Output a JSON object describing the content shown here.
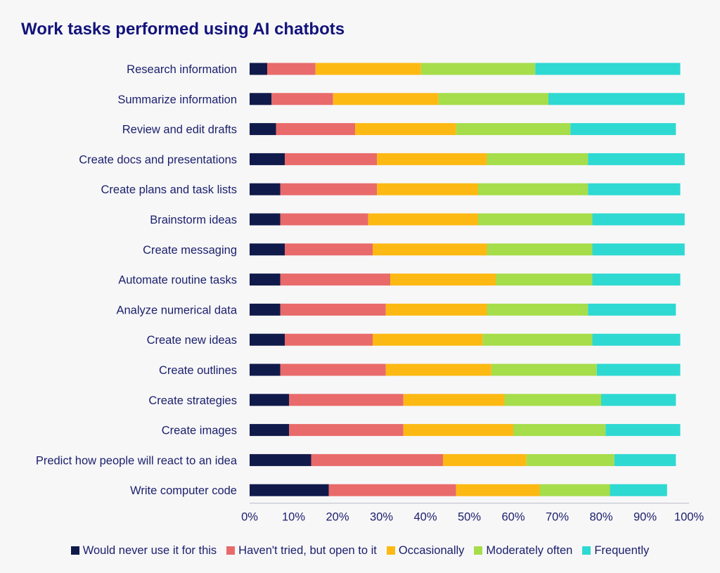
{
  "chart_data": {
    "type": "bar",
    "orientation": "horizontal",
    "stacked": true,
    "title": "Work tasks performed using AI chatbots",
    "xlabel": "",
    "ylabel": "",
    "xlim": [
      0,
      100
    ],
    "x_ticks": [
      "0%",
      "10%",
      "20%",
      "30%",
      "40%",
      "50%",
      "60%",
      "70%",
      "80%",
      "90%",
      "100%"
    ],
    "grid": false,
    "legend_position": "bottom",
    "categories": [
      "Research information",
      "Summarize information",
      "Review and edit drafts",
      "Create docs and presentations",
      "Create plans and task lists",
      "Brainstorm ideas",
      "Create messaging",
      "Automate routine tasks",
      "Analyze numerical data",
      "Create new ideas",
      "Create outlines",
      "Create strategies",
      "Create images",
      "Predict how people will react to an idea",
      "Write computer code"
    ],
    "series": [
      {
        "name": "Would never use it for this",
        "color": "#101a4a",
        "values": [
          4,
          5,
          6,
          8,
          7,
          7,
          8,
          7,
          7,
          8,
          7,
          9,
          9,
          14,
          18
        ]
      },
      {
        "name": "Haven't tried, but open to it",
        "color": "#e96a6a",
        "values": [
          11,
          14,
          18,
          21,
          22,
          20,
          20,
          25,
          24,
          20,
          24,
          26,
          26,
          30,
          29
        ]
      },
      {
        "name": "Occasionally",
        "color": "#fdb913",
        "values": [
          24,
          24,
          23,
          25,
          23,
          25,
          26,
          24,
          23,
          25,
          24,
          23,
          25,
          19,
          19
        ]
      },
      {
        "name": "Moderately often",
        "color": "#a6dd4a",
        "values": [
          26,
          25,
          26,
          23,
          25,
          26,
          24,
          22,
          23,
          25,
          24,
          22,
          21,
          20,
          16
        ]
      },
      {
        "name": "Frequently",
        "color": "#2ed9d2",
        "values": [
          33,
          31,
          24,
          22,
          21,
          21,
          21,
          20,
          20,
          20,
          19,
          17,
          17,
          14,
          13
        ]
      }
    ]
  }
}
